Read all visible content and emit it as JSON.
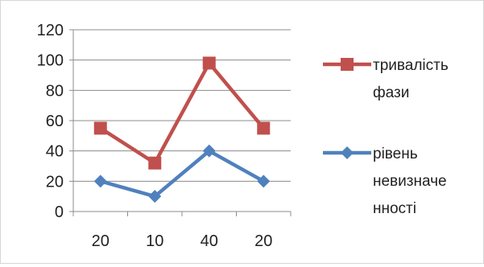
{
  "chart_data": {
    "type": "line",
    "categories": [
      "20",
      "10",
      "40",
      "20"
    ],
    "ylim": [
      0,
      120
    ],
    "yticks": [
      0,
      20,
      40,
      60,
      80,
      100,
      120
    ],
    "grid": true,
    "legend_position": "right",
    "series": [
      {
        "name_lines": [
          "тривалість",
          "фази"
        ],
        "values": [
          55,
          32,
          98,
          55
        ],
        "color": "#c0504d",
        "marker": "square"
      },
      {
        "name_lines": [
          "рівень",
          "невизначе",
          "нності"
        ],
        "values": [
          20,
          10,
          40,
          20
        ],
        "color": "#4f81bd",
        "marker": "diamond"
      }
    ]
  }
}
